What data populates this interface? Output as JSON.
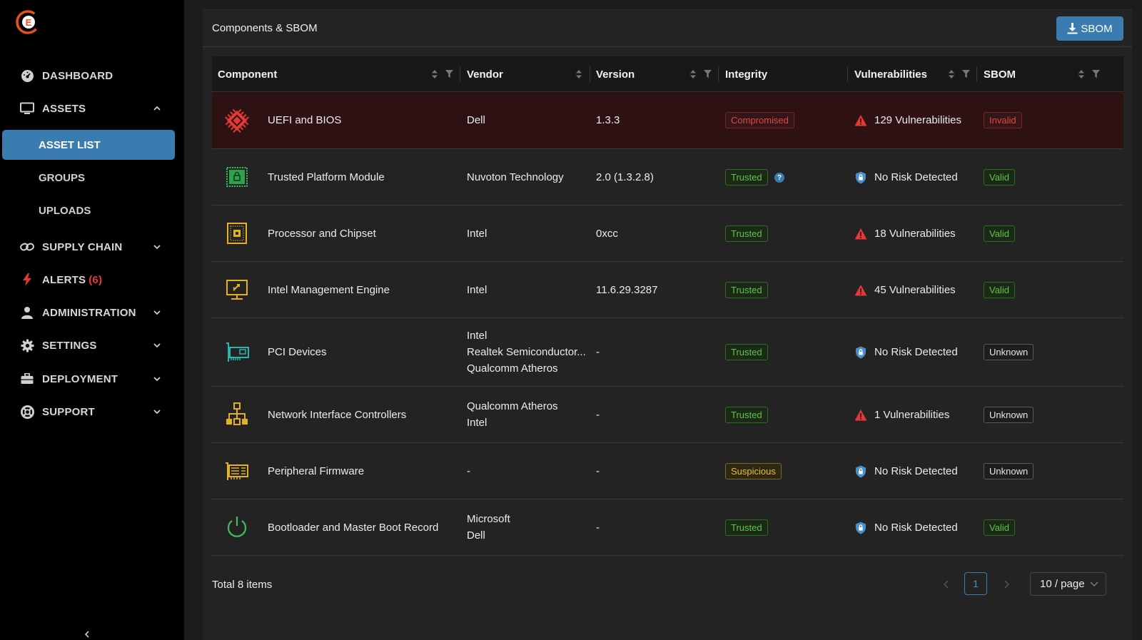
{
  "sidebar": {
    "nav": {
      "dashboard": "DASHBOARD",
      "assets": "ASSETS",
      "asset_list": "ASSET LIST",
      "groups": "GROUPS",
      "uploads": "UPLOADS",
      "supply_chain": "SUPPLY CHAIN",
      "alerts": "ALERTS",
      "alerts_count": "(6)",
      "administration": "ADMINISTRATION",
      "settings": "SETTINGS",
      "deployment": "DEPLOYMENT",
      "support": "SUPPORT"
    }
  },
  "panel": {
    "title": "Components & SBOM",
    "sbom_button": "SBOM"
  },
  "table": {
    "headers": {
      "component": "Component",
      "vendor": "Vendor",
      "version": "Version",
      "integrity": "Integrity",
      "vulnerabilities": "Vulnerabilities",
      "sbom": "SBOM"
    },
    "rows": [
      {
        "component": "UEFI and BIOS",
        "icon": "chip-icon",
        "vendor": [
          "Dell"
        ],
        "version": "1.3.3",
        "integrity": "Compromised",
        "vuln": "129 Vulnerabilities",
        "vuln_icon": "warning-icon",
        "sbom": "Invalid"
      },
      {
        "component": "Trusted Platform Module",
        "icon": "tpm-icon",
        "vendor": [
          "Nuvoton Technology"
        ],
        "version": "2.0 (1.3.2.8)",
        "integrity": "Trusted",
        "vuln": "No Risk Detected",
        "vuln_icon": "shield-icon",
        "sbom": "Valid"
      },
      {
        "component": "Processor and Chipset",
        "icon": "processor-icon",
        "vendor": [
          "Intel"
        ],
        "version": "0xcc",
        "integrity": "Trusted",
        "vuln": "18 Vulnerabilities",
        "vuln_icon": "warning-icon",
        "sbom": "Valid"
      },
      {
        "component": "Intel Management Engine",
        "icon": "management-engine-icon",
        "vendor": [
          "Intel"
        ],
        "version": "11.6.29.3287",
        "integrity": "Trusted",
        "vuln": "45 Vulnerabilities",
        "vuln_icon": "warning-icon",
        "sbom": "Valid"
      },
      {
        "component": "PCI Devices",
        "icon": "pci-card-icon",
        "vendor": [
          "Intel",
          "Realtek Semiconductor...",
          "Qualcomm Atheros"
        ],
        "version": "-",
        "integrity": "Trusted",
        "vuln": "No Risk Detected",
        "vuln_icon": "shield-icon",
        "sbom": "Unknown"
      },
      {
        "component": "Network Interface Controllers",
        "icon": "network-icon",
        "vendor": [
          "Qualcomm Atheros",
          "Intel"
        ],
        "version": "-",
        "integrity": "Trusted",
        "vuln": "1 Vulnerabilities",
        "vuln_icon": "warning-icon",
        "sbom": "Unknown"
      },
      {
        "component": "Peripheral Firmware",
        "icon": "peripheral-icon",
        "vendor": [
          "-"
        ],
        "version": "-",
        "integrity": "Suspicious",
        "vuln": "No Risk Detected",
        "vuln_icon": "shield-icon",
        "sbom": "Unknown"
      },
      {
        "component": "Bootloader and Master Boot Record",
        "icon": "power-icon",
        "vendor": [
          "Microsoft",
          "Dell"
        ],
        "version": "-",
        "integrity": "Trusted",
        "vuln": "No Risk Detected",
        "vuln_icon": "shield-icon",
        "sbom": "Valid"
      }
    ]
  },
  "footer": {
    "total": "Total 8 items",
    "current_page": "1",
    "page_size": "10 / page"
  },
  "colors": {
    "accent": "#3a7bb0",
    "danger": "#e04848",
    "success": "#5ec44a",
    "warning": "#e6c23a"
  }
}
